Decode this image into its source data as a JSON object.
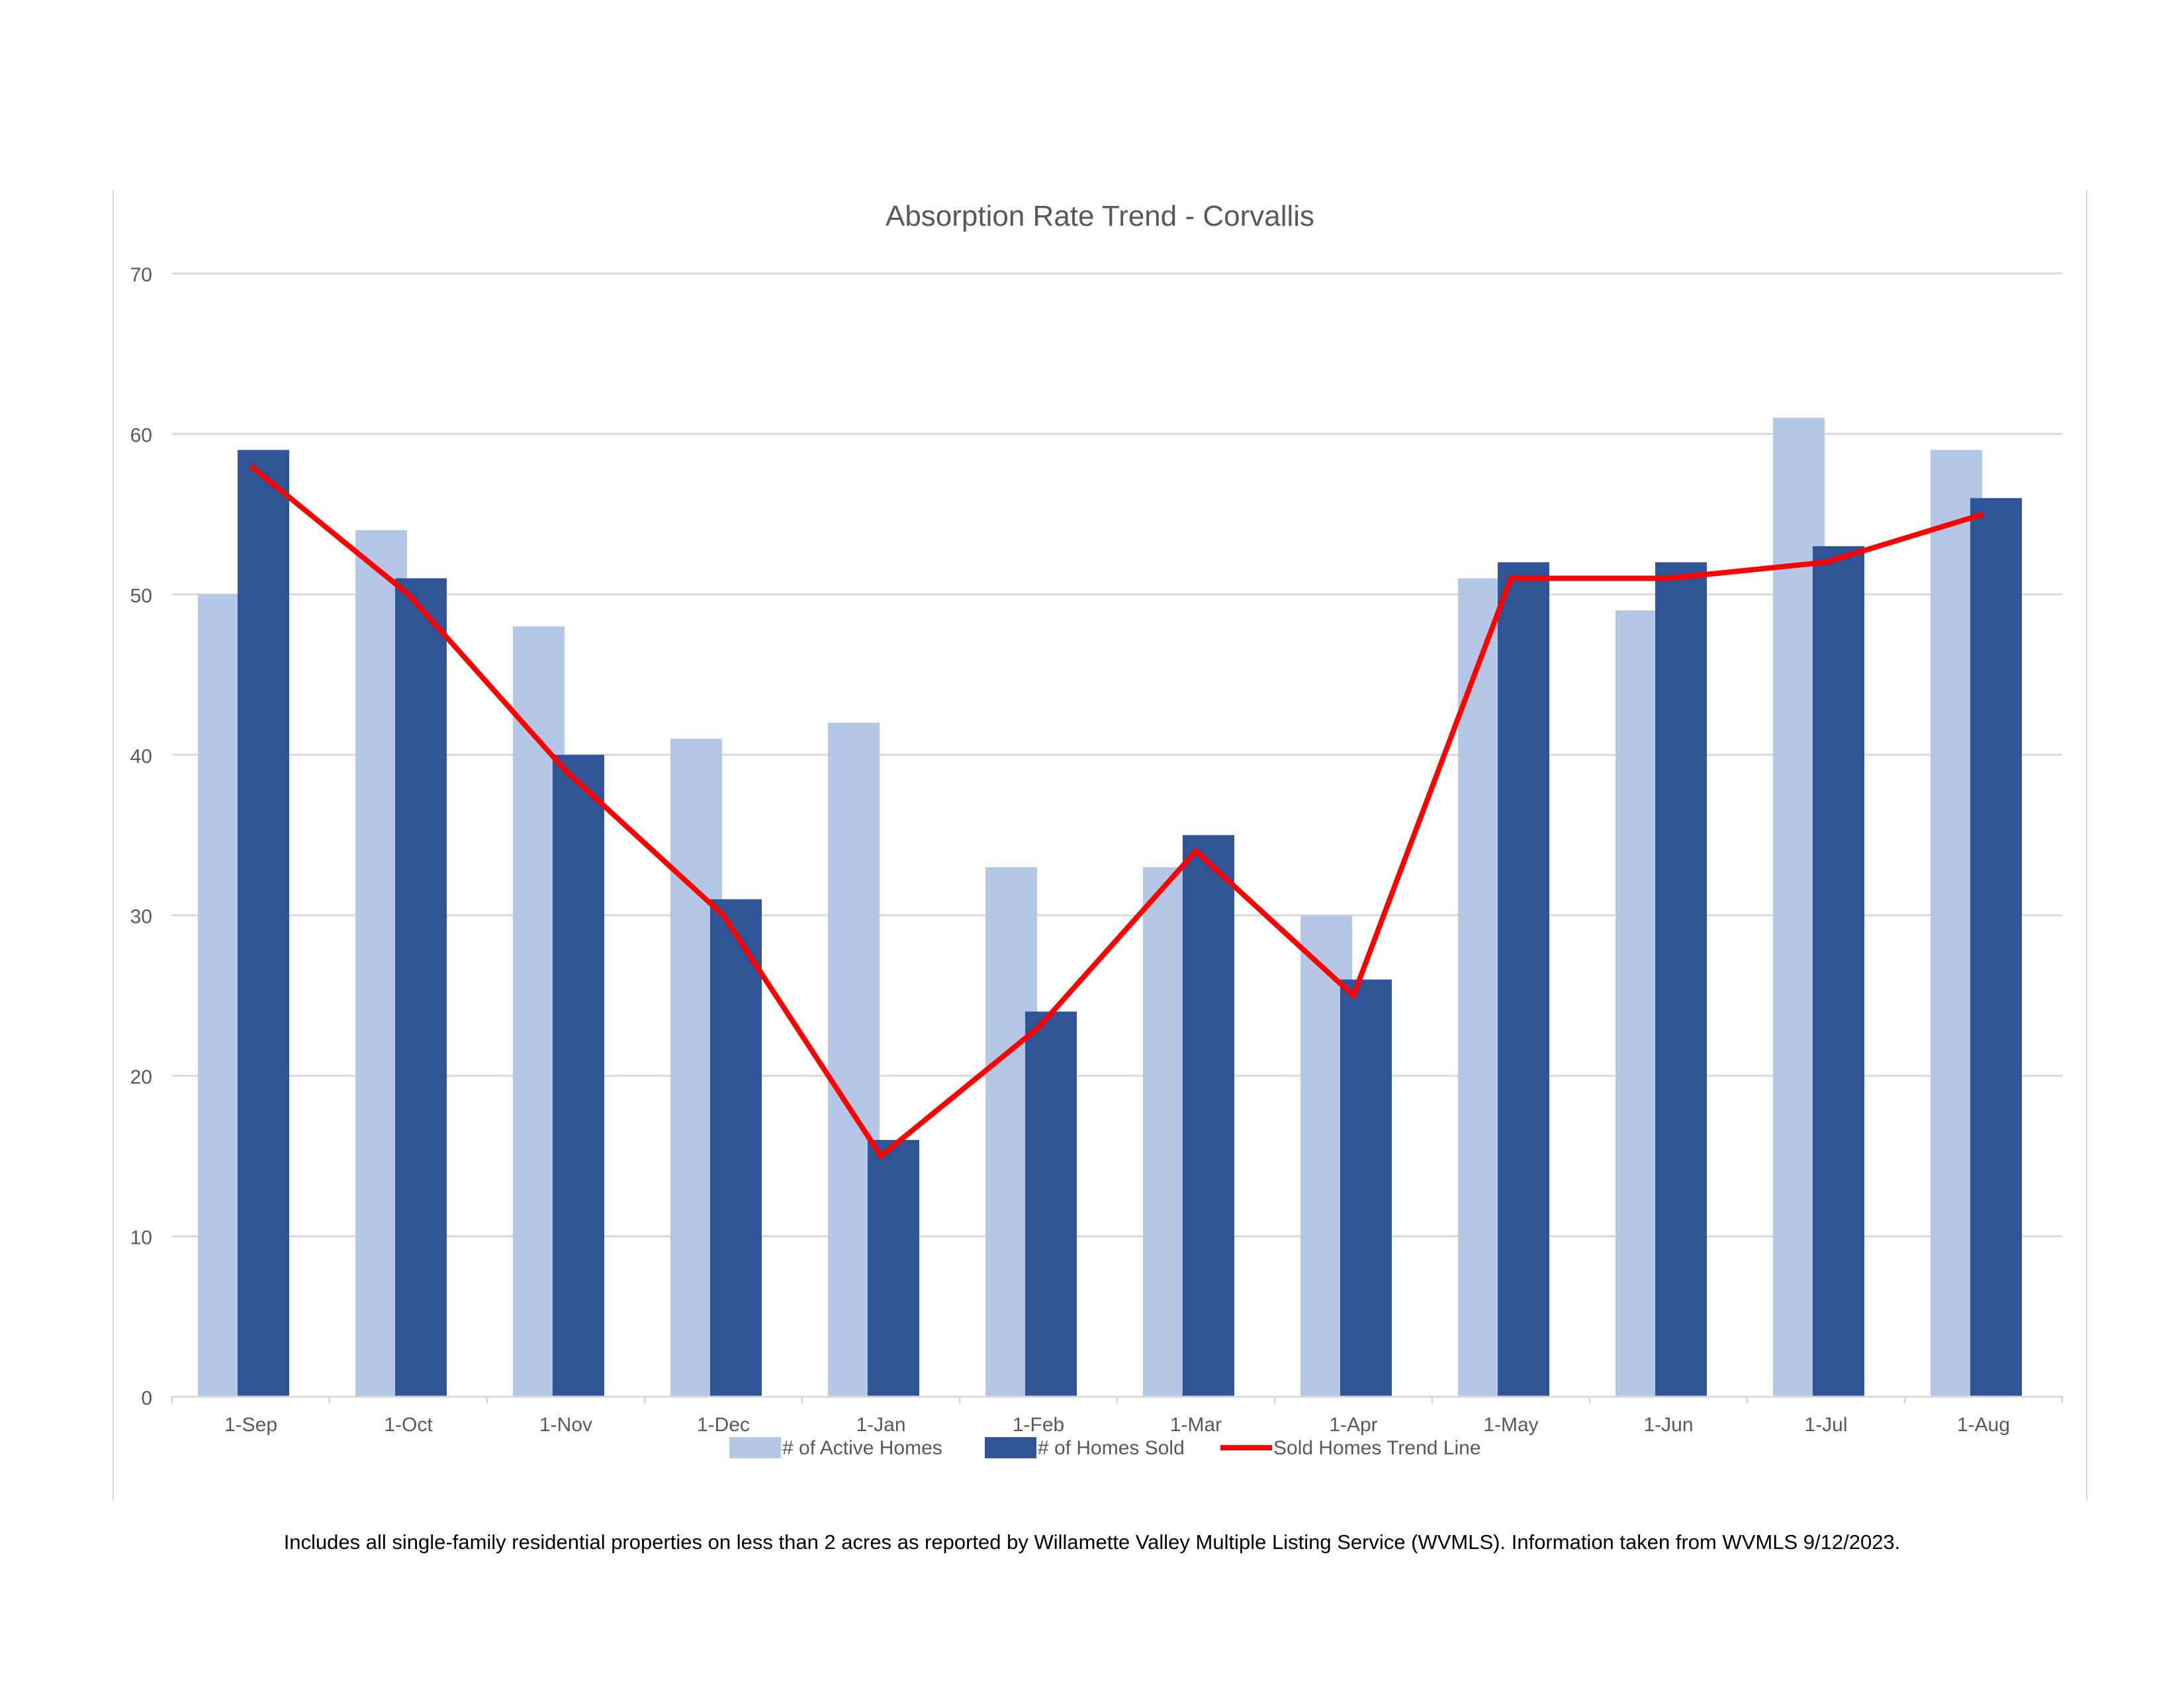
{
  "colors": {
    "active": "#b4c7e7",
    "sold": "#2f5597",
    "trend": "#ff0000",
    "grid": "#d9d9d9",
    "axis_text": "#595959",
    "title_text": "#595959"
  },
  "chart_data": {
    "type": "bar",
    "title": "Absorption Rate Trend - Corvallis",
    "xlabel": "",
    "ylabel": "",
    "categories": [
      "1-Sep",
      "1-Oct",
      "1-Nov",
      "1-Dec",
      "1-Jan",
      "1-Feb",
      "1-Mar",
      "1-Apr",
      "1-May",
      "1-Jun",
      "1-Jul",
      "1-Aug"
    ],
    "series": [
      {
        "name": "# of Active Homes",
        "kind": "bar",
        "values": [
          50,
          54,
          48,
          41,
          42,
          33,
          33,
          30,
          51,
          49,
          61,
          59
        ]
      },
      {
        "name": "# of Homes Sold",
        "kind": "bar",
        "values": [
          59,
          51,
          40,
          31,
          16,
          24,
          35,
          26,
          52,
          52,
          53,
          56
        ]
      },
      {
        "name": "Sold Homes Trend Line",
        "kind": "line",
        "values": [
          58,
          50,
          39,
          30,
          15,
          23,
          34,
          25,
          51,
          51,
          52,
          55
        ]
      }
    ],
    "ylim": [
      0,
      70
    ],
    "yticks": [
      "0",
      "10",
      "20",
      "30",
      "40",
      "50",
      "60",
      "70"
    ],
    "grid": true,
    "legend_position": "bottom"
  },
  "footnote": "Includes all single-family residential properties on less than 2 acres as reported by Willamette Valley Multiple Listing Service (WVMLS). Information taken from WVMLS 9/12/2023."
}
